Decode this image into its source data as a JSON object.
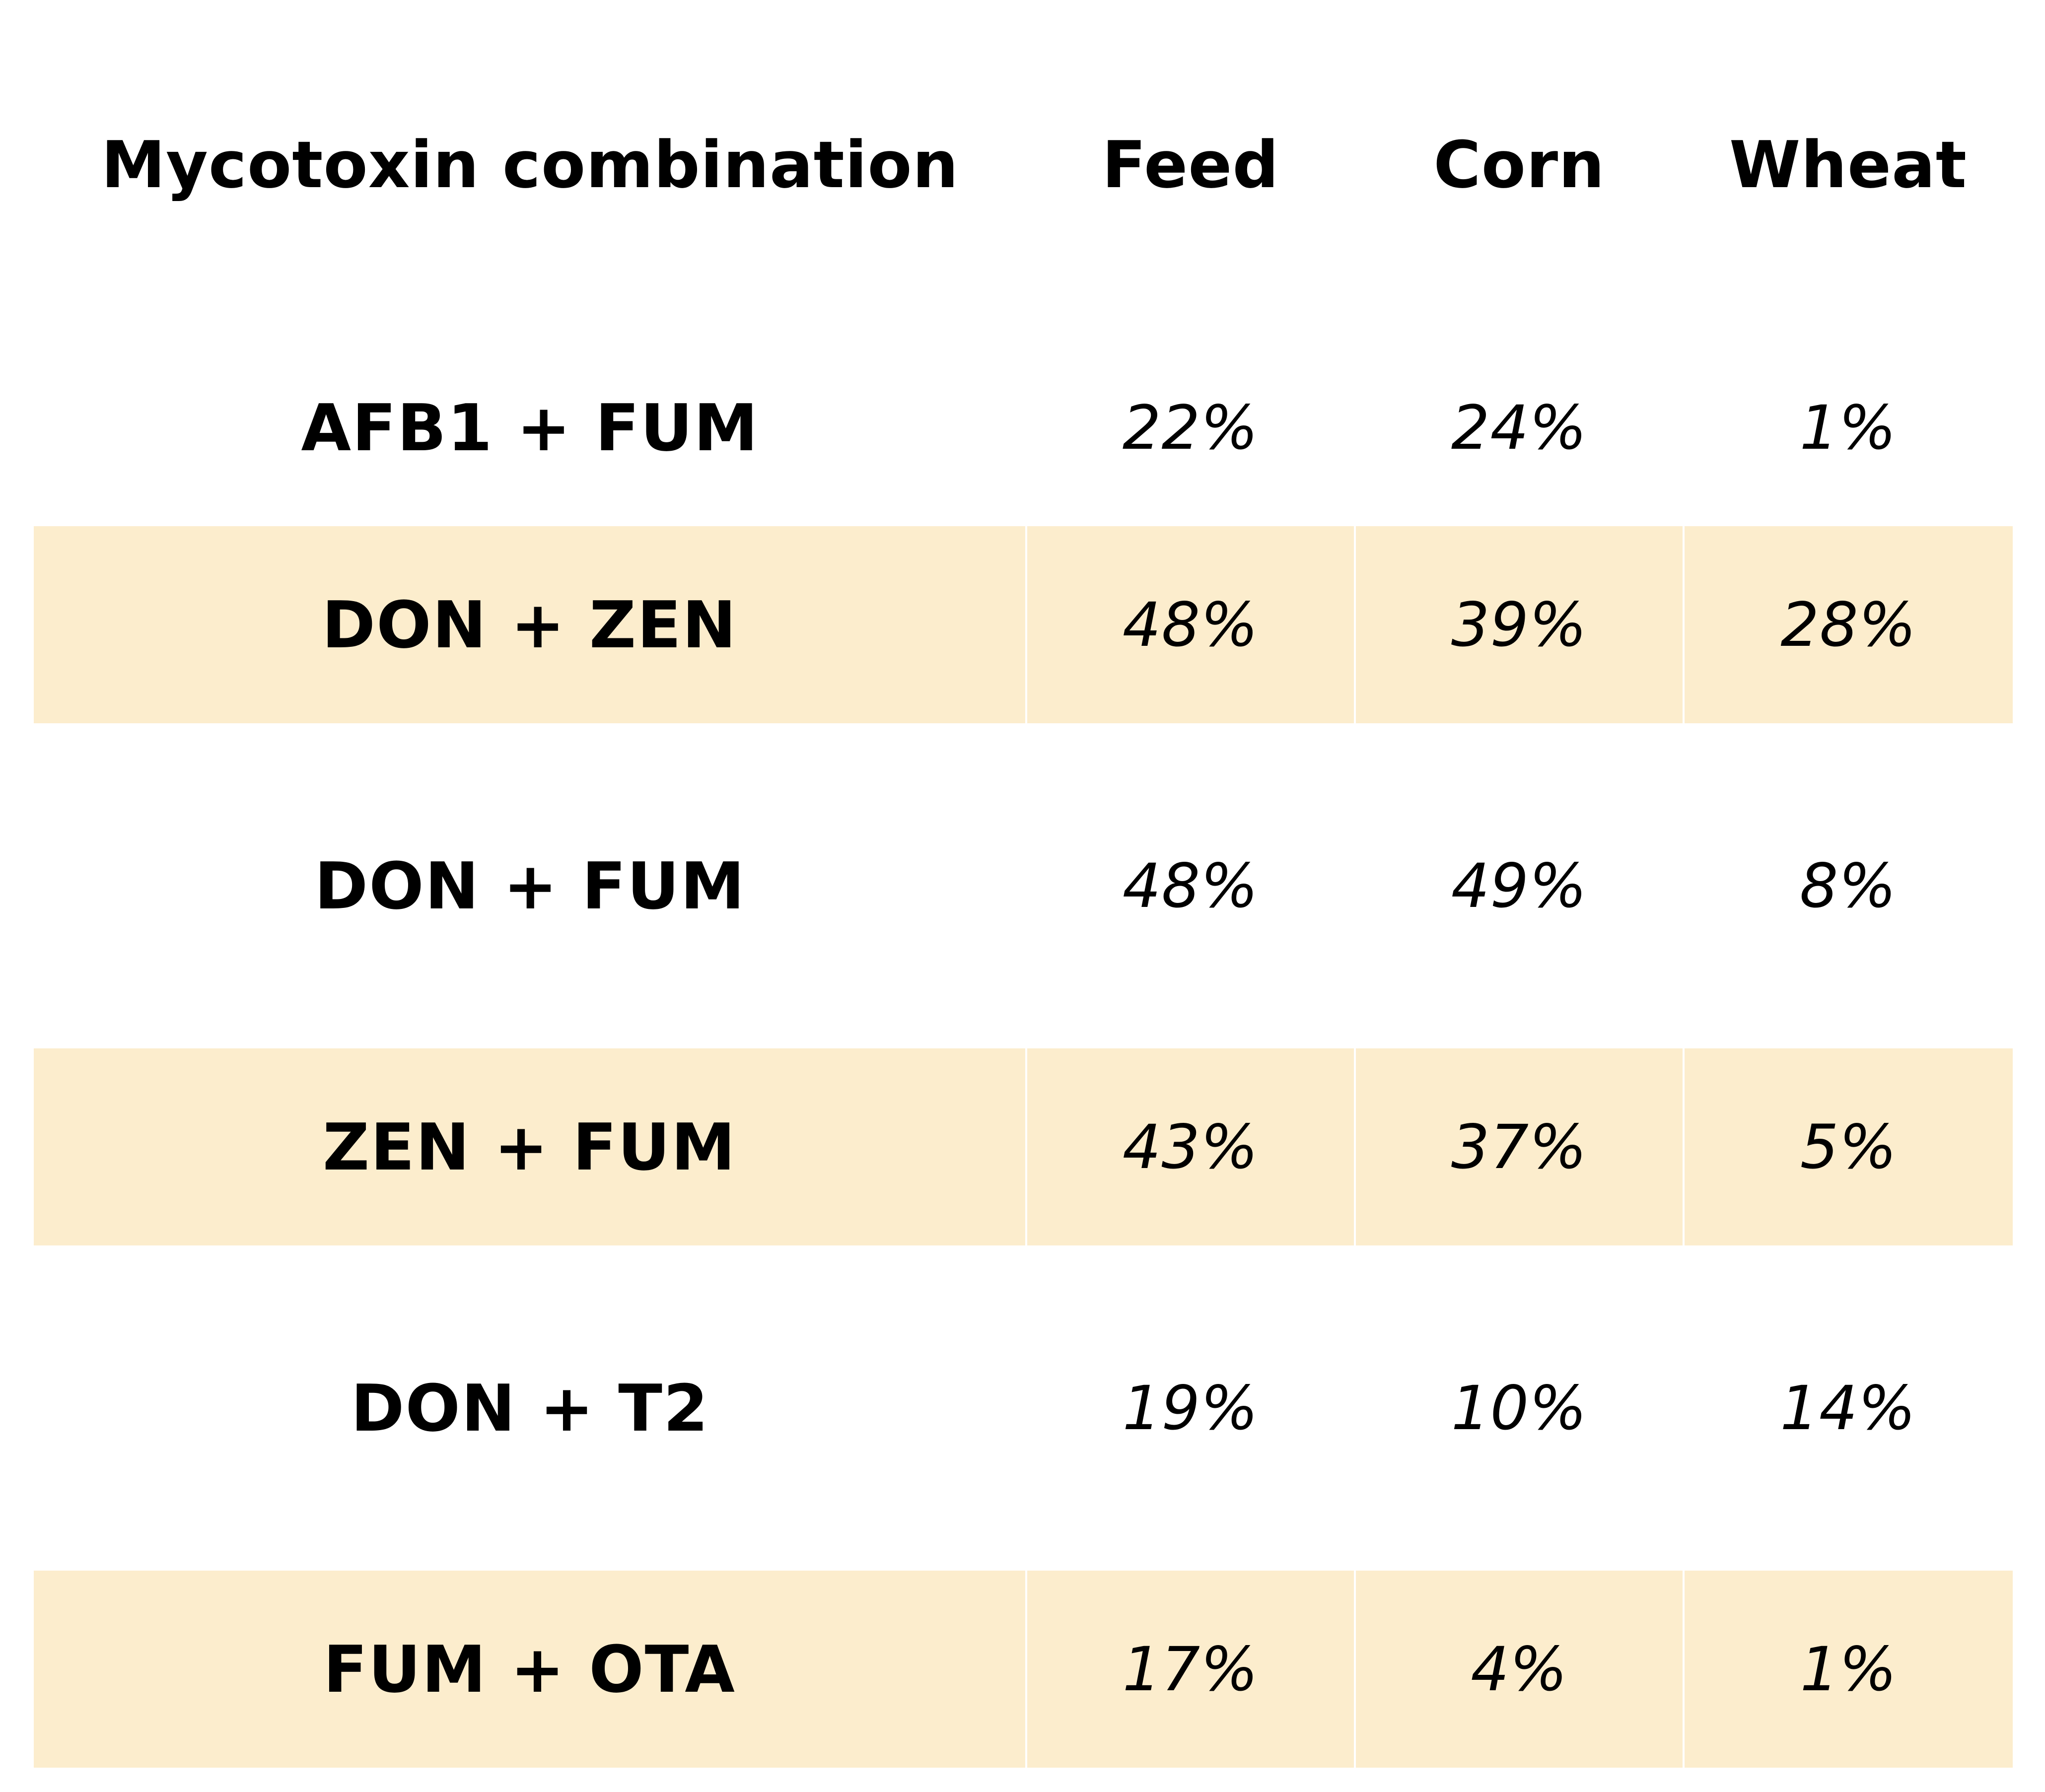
{
  "table": {
    "headers": [
      "Mycotoxin combination",
      "Feed",
      "Corn",
      "Wheat"
    ],
    "shaded_color": "#fcedcd",
    "rows": [
      {
        "combination": "AFB1 + FUM",
        "feed": "22%",
        "corn": "24%",
        "wheat": "1%",
        "shaded": false
      },
      {
        "combination": "DON + ZEN",
        "feed": "48%",
        "corn": "39%",
        "wheat": "28%",
        "shaded": true
      },
      {
        "combination": "DON + FUM",
        "feed": "48%",
        "corn": "49%",
        "wheat": "8%",
        "shaded": false
      },
      {
        "combination": "ZEN + FUM",
        "feed": "43%",
        "corn": "37%",
        "wheat": "5%",
        "shaded": true
      },
      {
        "combination": "DON + T2",
        "feed": "19%",
        "corn": "10%",
        "wheat": "14%",
        "shaded": false
      },
      {
        "combination": "FUM + OTA",
        "feed": "17%",
        "corn": "4%",
        "wheat": "1%",
        "shaded": true
      }
    ]
  }
}
